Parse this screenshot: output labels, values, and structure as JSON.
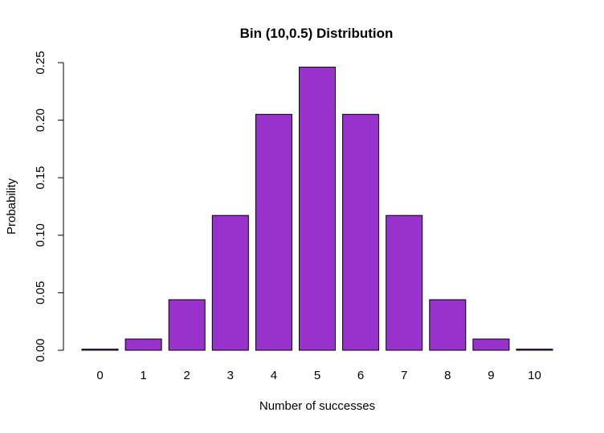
{
  "chart_data": {
    "type": "bar",
    "title": "Bin (10,0.5) Distribution",
    "xlabel": "Number of successes",
    "ylabel": "Probability",
    "categories": [
      "0",
      "1",
      "2",
      "3",
      "4",
      "5",
      "6",
      "7",
      "8",
      "9",
      "10"
    ],
    "values": [
      0.000977,
      0.009766,
      0.043945,
      0.117188,
      0.205078,
      0.246094,
      0.205078,
      0.117188,
      0.043945,
      0.009766,
      0.000977
    ],
    "yticks": [
      "0.00",
      "0.05",
      "0.10",
      "0.15",
      "0.20",
      "0.25"
    ],
    "ylim": [
      0,
      0.25
    ],
    "grid": false,
    "bar_color": "#9932CC"
  }
}
